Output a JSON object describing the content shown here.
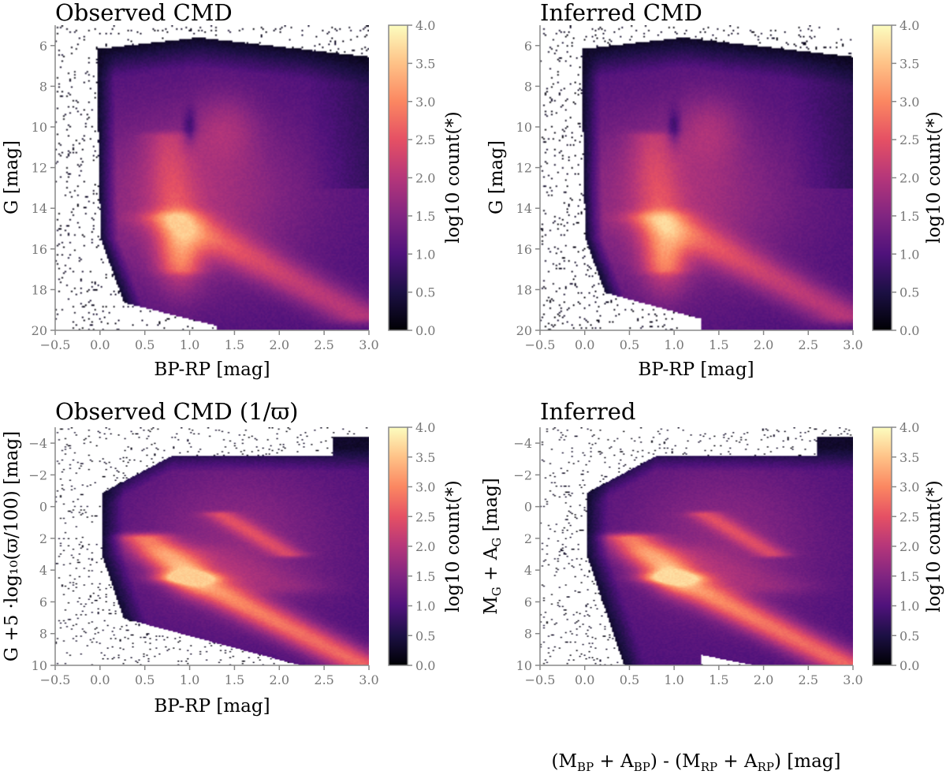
{
  "colormap": {
    "name": "magma",
    "stops": [
      "#000004",
      "#1c1044",
      "#4f127b",
      "#812581",
      "#b5367a",
      "#e55064",
      "#fb8761",
      "#fec287",
      "#fcfdbf"
    ]
  },
  "chart_data": [
    {
      "type": "heatmap",
      "title": "Observed CMD",
      "xlabel": "BP-RP [mag]",
      "ylabel": "G [mag]",
      "xlim": [
        -0.5,
        3.0
      ],
      "ylim": [
        20,
        5
      ],
      "y_inverted": true,
      "x_ticks": [
        -0.5,
        0.0,
        0.5,
        1.0,
        1.5,
        2.0,
        2.5,
        3.0
      ],
      "x_tick_labels": [
        "−0.5",
        "0.0",
        "0.5",
        "1.0",
        "1.5",
        "2.0",
        "2.5",
        "3.0"
      ],
      "y_ticks": [
        6,
        8,
        10,
        12,
        14,
        16,
        18,
        20
      ],
      "y_tick_labels": [
        "6",
        "8",
        "10",
        "12",
        "14",
        "16",
        "18",
        "20"
      ],
      "colorbar": {
        "label": "log10 count(*)",
        "range": [
          0.0,
          4.0
        ],
        "ticks": [
          "0.0",
          "0.5",
          "1.0",
          "1.5",
          "2.0",
          "2.5",
          "3.0",
          "3.5",
          "4.0"
        ]
      },
      "features": {
        "main_sequence_peak": {
          "bp_rp": 0.9,
          "g": 16.3,
          "log_count": 3.6
        },
        "giant_clump": {
          "bp_rp": 1.25,
          "g": 8.5
        },
        "bp_rp_gap": 1.0
      }
    },
    {
      "type": "heatmap",
      "title": "Inferred CMD",
      "xlabel": "BP-RP [mag]",
      "ylabel": "G [mag]",
      "xlim": [
        -0.5,
        3.0
      ],
      "ylim": [
        20,
        5
      ],
      "y_inverted": true,
      "x_ticks": [
        -0.5,
        0.0,
        0.5,
        1.0,
        1.5,
        2.0,
        2.5,
        3.0
      ],
      "x_tick_labels": [
        "−0.5",
        "0.0",
        "0.5",
        "1.0",
        "1.5",
        "2.0",
        "2.5",
        "3.0"
      ],
      "y_ticks": [
        6,
        8,
        10,
        12,
        14,
        16,
        18,
        20
      ],
      "y_tick_labels": [
        "6",
        "8",
        "10",
        "12",
        "14",
        "16",
        "18",
        "20"
      ],
      "colorbar": {
        "label": "log10 count(*)",
        "range": [
          0.0,
          4.0
        ],
        "ticks": [
          "0.0",
          "0.5",
          "1.0",
          "1.5",
          "2.0",
          "2.5",
          "3.0",
          "3.5",
          "4.0"
        ]
      },
      "features": {
        "main_sequence_peak": {
          "bp_rp": 0.9,
          "g": 16.5,
          "log_count": 3.7
        },
        "giant_clump": {
          "bp_rp": 1.25,
          "g": 8.5
        },
        "bp_rp_gap": 1.0
      }
    },
    {
      "type": "heatmap",
      "title": "Observed CMD (1/ϖ)",
      "xlabel": "BP-RP [mag]",
      "ylabel": "G +5 ·log₁₀(ϖ/100) [mag]",
      "xlim": [
        -0.5,
        3.0
      ],
      "ylim": [
        10,
        -5
      ],
      "y_inverted": true,
      "x_ticks": [
        -0.5,
        0.0,
        0.5,
        1.0,
        1.5,
        2.0,
        2.5,
        3.0
      ],
      "x_tick_labels": [
        "−0.5",
        "0.0",
        "0.5",
        "1.0",
        "1.5",
        "2.0",
        "2.5",
        "3.0"
      ],
      "y_ticks": [
        -4,
        -2,
        0,
        2,
        4,
        6,
        8,
        10
      ],
      "y_tick_labels": [
        "−4",
        "−2",
        "0",
        "2",
        "4",
        "6",
        "8",
        "10"
      ],
      "colorbar": {
        "label": "log10 count(*)",
        "range": [
          0.0,
          4.0
        ],
        "ticks": [
          "0.0",
          "0.5",
          "1.0",
          "1.5",
          "2.0",
          "2.5",
          "3.0",
          "3.5",
          "4.0"
        ]
      },
      "features": {
        "main_sequence_peak": {
          "bp_rp": 1.0,
          "abs_mag": 4.5,
          "log_count": 3.6
        },
        "red_clump": {
          "bp_rp": 1.35,
          "abs_mag": 0.5
        },
        "main_sequence_end": {
          "bp_rp": 2.8,
          "abs_mag": 9.5
        }
      }
    },
    {
      "type": "heatmap",
      "title": "Inferred",
      "xlabel_parts": {
        "a": "(M",
        "b": "BP",
        "c": " + A",
        "d": "BP",
        "e": ") - (M",
        "f": "RP",
        "g": " + A",
        "h": "RP",
        "i": ") [mag]"
      },
      "ylabel_parts": {
        "a": "M",
        "b": "G",
        "c": " + A",
        "d": "G",
        "e": " [mag]"
      },
      "xlim": [
        -0.5,
        3.0
      ],
      "ylim": [
        10,
        -5
      ],
      "y_inverted": true,
      "x_ticks": [
        -0.5,
        0.0,
        0.5,
        1.0,
        1.5,
        2.0,
        2.5,
        3.0
      ],
      "x_tick_labels": [
        "−0.5",
        "0.0",
        "0.5",
        "1.0",
        "1.5",
        "2.0",
        "2.5",
        "3.0"
      ],
      "y_ticks": [
        -4,
        -2,
        0,
        2,
        4,
        6,
        8,
        10
      ],
      "y_tick_labels": [
        "−4",
        "−2",
        "0",
        "2",
        "4",
        "6",
        "8",
        "10"
      ],
      "colorbar": {
        "label": "log10 count(*)",
        "range": [
          0.0,
          4.0
        ],
        "ticks": [
          "0.0",
          "0.5",
          "1.0",
          "1.5",
          "2.0",
          "2.5",
          "3.0",
          "3.5",
          "4.0"
        ]
      },
      "features": {
        "main_sequence_peak": {
          "bp_rp": 1.0,
          "abs_mag": 4.5,
          "log_count": 3.7
        },
        "red_clump": {
          "bp_rp": 1.35,
          "abs_mag": 0.5
        },
        "main_sequence_end": {
          "bp_rp": 2.8,
          "abs_mag": 9.5
        }
      }
    }
  ]
}
